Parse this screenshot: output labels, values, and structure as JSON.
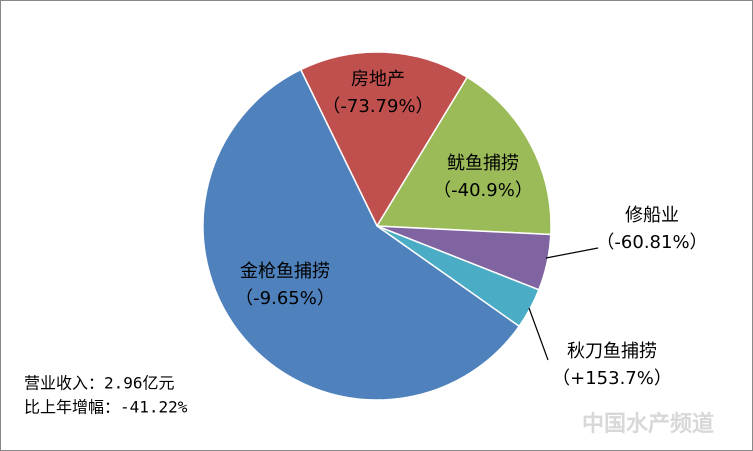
{
  "chart_data": {
    "type": "pie",
    "categories": [
      "房地产",
      "鱿鱼捕捞",
      "修船业",
      "秋刀鱼捕捞",
      "金枪鱼捕捞"
    ],
    "values": [
      15.9,
      17.1,
      5.2,
      3.8,
      58.0
    ],
    "growth_labels": [
      "（-73.79%）",
      "（-40.9%）",
      "（-60.81%）",
      "（+153.7%）",
      "（-9.65%）"
    ],
    "colors": [
      "#c0504d",
      "#9bbb59",
      "#8064a2",
      "#4bacc6",
      "#4f81bd"
    ],
    "start_angle": 334,
    "annotations": [
      "营业收入：2.96亿元",
      "比上年增幅：-41.22%"
    ],
    "watermark": "中国水产频道"
  }
}
